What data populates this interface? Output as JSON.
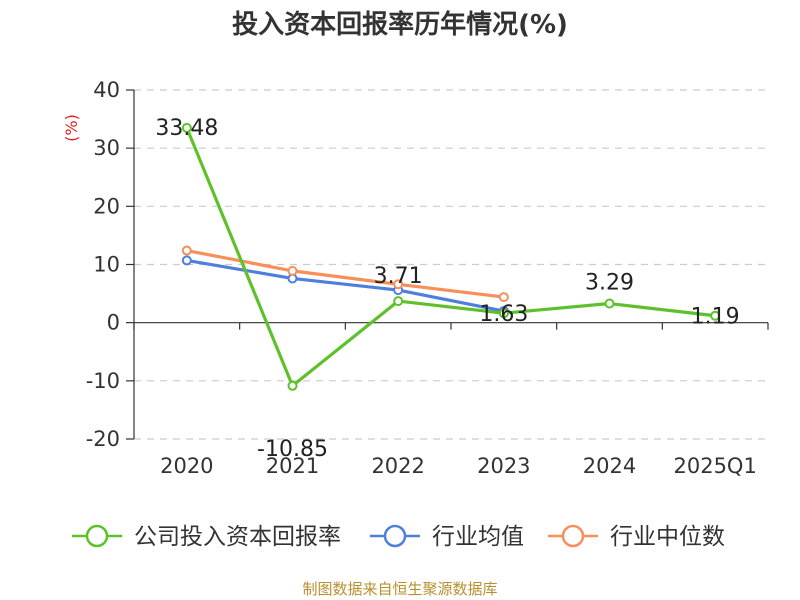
{
  "chart_data": {
    "type": "line",
    "title": "投入资本回报率历年情况(%)",
    "ylabel": "(%)",
    "categories": [
      "2020",
      "2021",
      "2022",
      "2023",
      "2024",
      "2025Q1"
    ],
    "ylim": [
      -20,
      40
    ],
    "yticks": [
      -20,
      -10,
      0,
      10,
      20,
      30,
      40
    ],
    "grid": true,
    "legend_position": "bottom",
    "series": [
      {
        "name": "公司投入资本回报率",
        "color": "#5ec12b",
        "values": [
          33.48,
          -10.85,
          3.71,
          1.63,
          3.29,
          1.19
        ],
        "labels": [
          "33.48",
          "-10.85",
          "3.71",
          "1.63",
          "3.29",
          "1.19"
        ]
      },
      {
        "name": "行业均值",
        "color": "#4e7fdd",
        "values": [
          10.7,
          7.6,
          5.6,
          2.0,
          null,
          null
        ]
      },
      {
        "name": "行业中位数",
        "color": "#f78f5b",
        "values": [
          12.4,
          8.9,
          6.6,
          4.4,
          null,
          null
        ]
      }
    ]
  },
  "source": "制图数据来自恒生聚源数据库"
}
